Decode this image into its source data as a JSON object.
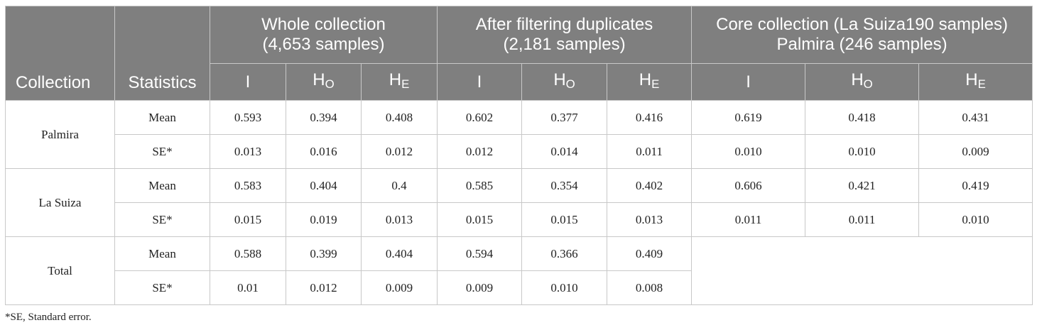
{
  "header": {
    "collection_label": "Collection",
    "statistics_label": "Statistics",
    "groups": [
      {
        "label": "Whole collection\n(4,653 samples)"
      },
      {
        "label": "After filtering duplicates\n(2,181 samples)"
      },
      {
        "label": "Core collection (La Suiza190 samples)\nPalmira (246 samples)"
      }
    ],
    "sub_columns": [
      {
        "main": "I",
        "sub": ""
      },
      {
        "main": "H",
        "sub": "O"
      },
      {
        "main": "H",
        "sub": "E"
      }
    ]
  },
  "rows": [
    {
      "collection": "Palmira",
      "mean": {
        "label": "Mean",
        "values": [
          "0.593",
          "0.394",
          "0.408",
          "0.602",
          "0.377",
          "0.416",
          "0.619",
          "0.418",
          "0.431"
        ]
      },
      "se": {
        "label": "SE*",
        "values": [
          "0.013",
          "0.016",
          "0.012",
          "0.012",
          "0.014",
          "0.011",
          "0.010",
          "0.010",
          "0.009"
        ]
      }
    },
    {
      "collection": "La Suiza",
      "mean": {
        "label": "Mean",
        "values": [
          "0.583",
          "0.404",
          "0.4",
          "0.585",
          "0.354",
          "0.402",
          "0.606",
          "0.421",
          "0.419"
        ]
      },
      "se": {
        "label": "SE*",
        "values": [
          "0.015",
          "0.019",
          "0.013",
          "0.015",
          "0.015",
          "0.013",
          "0.011",
          "0.011",
          "0.010"
        ]
      }
    },
    {
      "collection": "Total",
      "mean": {
        "label": "Mean",
        "values": [
          "0.588",
          "0.399",
          "0.404",
          "0.594",
          "0.366",
          "0.409"
        ]
      },
      "se": {
        "label": "SE*",
        "values": [
          "0.01",
          "0.012",
          "0.009",
          "0.009",
          "0.010",
          "0.008"
        ]
      }
    }
  ],
  "footnote": "*SE, Standard error.",
  "colors": {
    "header_bg": "#7f7f7f",
    "header_text": "#ffffff",
    "border": "#c8c8c8"
  }
}
